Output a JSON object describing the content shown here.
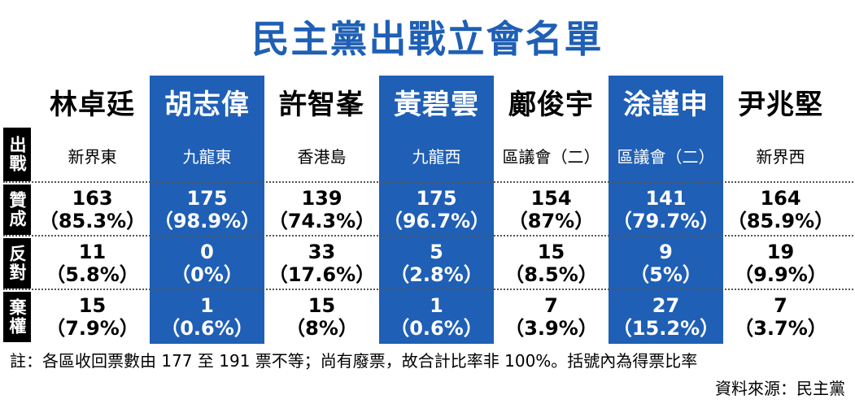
{
  "title": "民主黨出戰立會名單",
  "row_labels": [
    "出戰",
    "贊成",
    "反對",
    "棄權"
  ],
  "candidates": [
    {
      "name": "林卓廷",
      "district": "新界東",
      "for": "163",
      "for_pct": "（85.3%）",
      "against": "11",
      "against_pct": "（5.8%）",
      "abstain": "15",
      "abstain_pct": "（7.9%）"
    },
    {
      "name": "胡志偉",
      "district": "九龍東",
      "for": "175",
      "for_pct": "（98.9%）",
      "against": "0",
      "against_pct": "（0%）",
      "abstain": "1",
      "abstain_pct": "（0.6%）"
    },
    {
      "name": "許智峯",
      "district": "香港島",
      "for": "139",
      "for_pct": "（74.3%）",
      "against": "33",
      "against_pct": "（17.6%）",
      "abstain": "15",
      "abstain_pct": "（8%）"
    },
    {
      "name": "黃碧雲",
      "district": "九龍西",
      "for": "175",
      "for_pct": "（96.7%）",
      "against": "5",
      "against_pct": "（2.8%）",
      "abstain": "1",
      "abstain_pct": "（0.6%）"
    },
    {
      "name": "鄺俊宇",
      "district": "區議會（二）",
      "for": "154",
      "for_pct": "（87%）",
      "against": "15",
      "against_pct": "（8.5%）",
      "abstain": "7",
      "abstain_pct": "（3.9%）"
    },
    {
      "name": "涂謹申",
      "district": "區議會（二）",
      "for": "141",
      "for_pct": "（79.7%）",
      "against": "9",
      "against_pct": "（5%）",
      "abstain": "27",
      "abstain_pct": "（15.2%）"
    },
    {
      "name": "尹兆堅",
      "district": "新界西",
      "for": "164",
      "for_pct": "（85.9%）",
      "against": "19",
      "against_pct": "（9.9%）",
      "abstain": "7",
      "abstain_pct": "（3.7%）"
    }
  ],
  "note": "註：各區收回票數由 177 至 191 票不等；尚有廢票，故合計比率非 100%。括號內為得票比率",
  "source": "資料來源：民主黨",
  "colors": {
    "accent": "#1f5fb5",
    "label_bg": "#000000"
  }
}
